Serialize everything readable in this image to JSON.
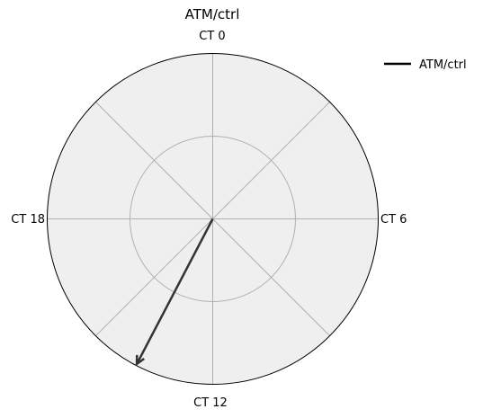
{
  "chart_data": {
    "type": "polar-arrow",
    "title": "ATM/ctrl",
    "angular_labels": [
      "CT 0",
      "CT 6",
      "CT 12",
      "CT 18"
    ],
    "angular_unit": "CT hours",
    "angular_period": 24,
    "radial_gridlines": [
      0.5,
      1.0
    ],
    "spokes": 8,
    "grid": true,
    "background_color": "#efefef",
    "legend_position": "top-right",
    "series": [
      {
        "name": "ATM/ctrl",
        "color": "#333333",
        "legend_color": "#000000",
        "phase_ct": 13.84,
        "magnitude": 0.99
      }
    ]
  }
}
